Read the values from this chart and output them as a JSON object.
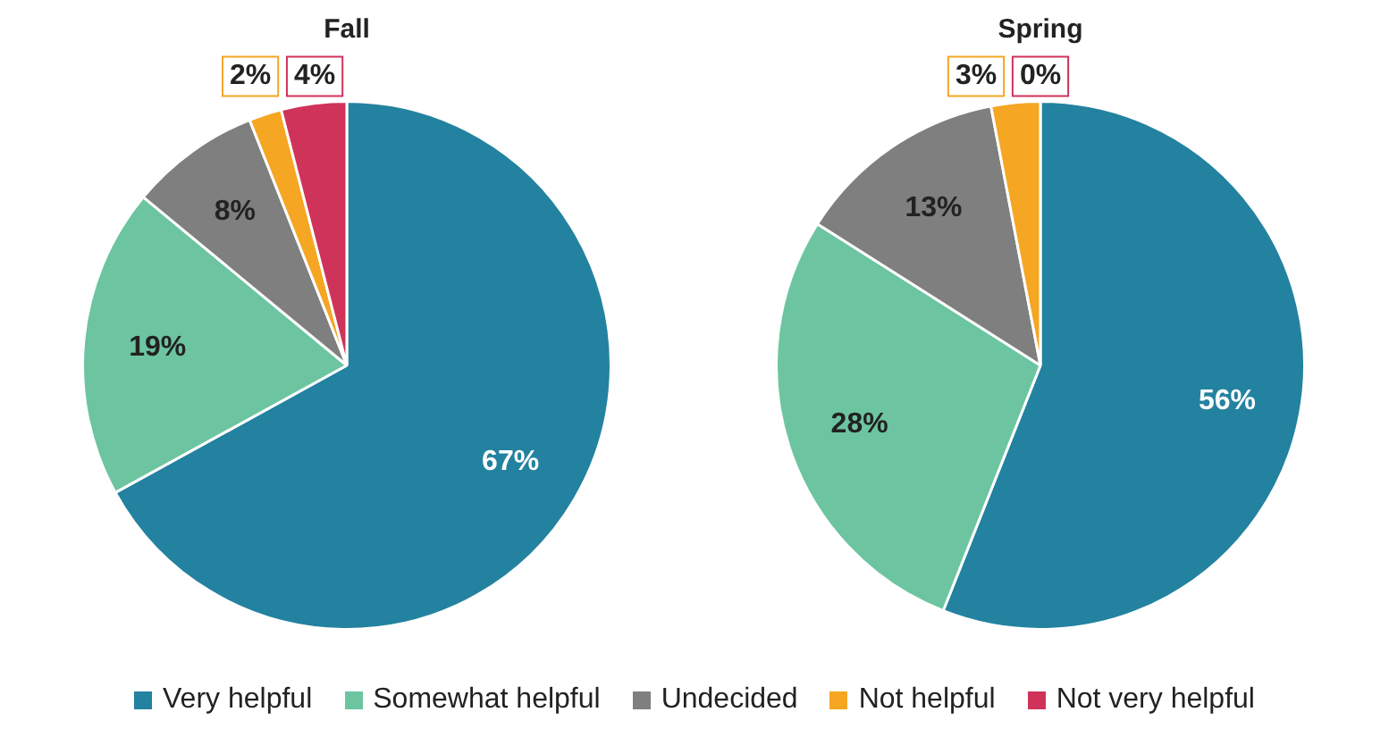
{
  "chart_data": [
    {
      "type": "pie",
      "title": "Fall",
      "categories": [
        "Very helpful",
        "Somewhat helpful",
        "Undecided",
        "Not helpful",
        "Not very helpful"
      ],
      "values": [
        67,
        19,
        8,
        2,
        4
      ],
      "value_labels": [
        "67%",
        "19%",
        "8%",
        "2%",
        "4%"
      ],
      "colors": [
        "#23829f",
        "#6cc5a0",
        "#7f7f7f",
        "#f5a623",
        "#d0335a"
      ],
      "legend": "bottom"
    },
    {
      "type": "pie",
      "title": "Spring",
      "values": [
        56,
        28,
        13,
        3,
        0
      ],
      "value_labels": [
        "56%",
        "28%",
        "13%",
        "3%",
        "0%"
      ],
      "colors": [
        "#23829f",
        "#6cc5a0",
        "#7f7f7f",
        "#f5a623",
        "#d0335a"
      ]
    }
  ]
}
